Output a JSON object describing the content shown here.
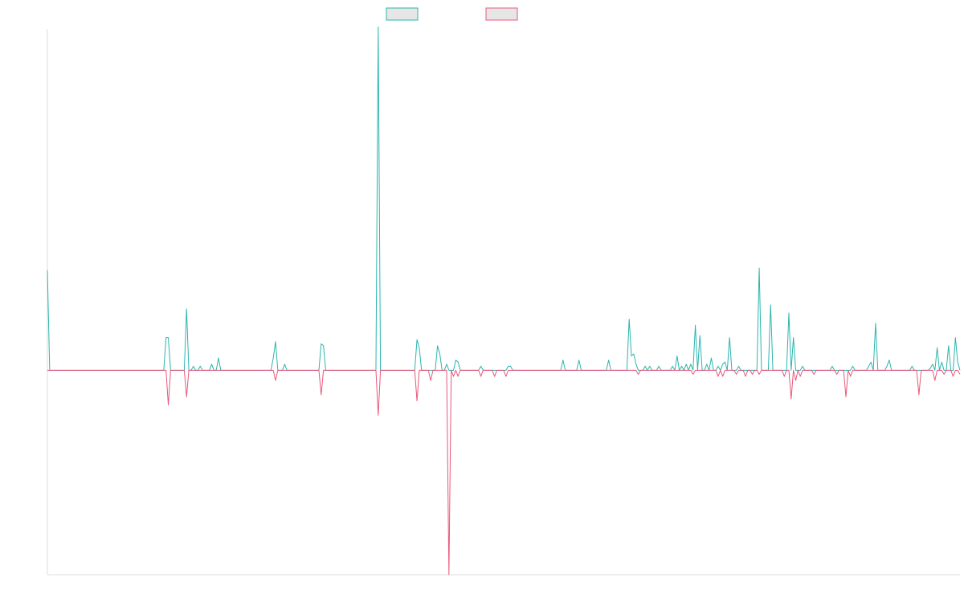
{
  "chart_data": {
    "type": "line",
    "title": "",
    "xlabel": "",
    "ylabel": "",
    "grid": false,
    "legend": "top-center",
    "xlim": [
      0,
      400
    ],
    "ylim": [
      -100,
      167
    ],
    "colors": {
      "series_a": "#2bb5ad",
      "series_b": "#e8587b",
      "legend_fill": "#e6e6e6",
      "axis": "#dddddd"
    },
    "series": [
      {
        "name": "",
        "color": "#2bb5ad",
        "sign": 1,
        "spikes": [
          [
            0,
            49
          ],
          [
            52,
            16
          ],
          [
            53,
            16
          ],
          [
            61,
            30
          ],
          [
            64,
            2
          ],
          [
            67,
            2
          ],
          [
            72,
            3
          ],
          [
            75,
            6
          ],
          [
            99,
            6
          ],
          [
            100,
            14
          ],
          [
            104,
            3
          ],
          [
            120,
            13
          ],
          [
            121,
            12
          ],
          [
            145,
            168
          ],
          [
            162,
            15
          ],
          [
            163,
            11
          ],
          [
            171,
            12
          ],
          [
            172,
            8
          ],
          [
            175,
            3
          ],
          [
            179,
            5
          ],
          [
            180,
            4
          ],
          [
            190,
            2
          ],
          [
            202,
            2
          ],
          [
            203,
            2
          ],
          [
            226,
            5
          ],
          [
            233,
            5
          ],
          [
            246,
            5
          ],
          [
            255,
            25
          ],
          [
            256,
            7
          ],
          [
            257,
            8
          ],
          [
            258,
            3
          ],
          [
            262,
            2
          ],
          [
            264,
            2
          ],
          [
            268,
            2
          ],
          [
            274,
            2
          ],
          [
            276,
            7
          ],
          [
            278,
            2
          ],
          [
            280,
            3
          ],
          [
            282,
            3
          ],
          [
            284,
            22
          ],
          [
            286,
            17
          ],
          [
            289,
            3
          ],
          [
            291,
            6
          ],
          [
            294,
            2
          ],
          [
            296,
            3
          ],
          [
            297,
            4
          ],
          [
            299,
            16
          ],
          [
            303,
            2
          ],
          [
            312,
            50
          ],
          [
            317,
            32
          ],
          [
            325,
            28
          ],
          [
            327,
            16
          ],
          [
            331,
            2
          ],
          [
            344,
            2
          ],
          [
            353,
            2
          ],
          [
            360,
            2
          ],
          [
            361,
            4
          ],
          [
            363,
            23
          ],
          [
            368,
            2
          ],
          [
            369,
            5
          ],
          [
            379,
            2
          ],
          [
            387,
            1
          ],
          [
            388,
            3
          ],
          [
            390,
            11
          ],
          [
            392,
            4
          ],
          [
            395,
            12
          ],
          [
            398,
            16
          ],
          [
            399,
            4
          ]
        ]
      },
      {
        "name": "",
        "color": "#e8587b",
        "sign": -1,
        "spikes": [
          [
            53,
            17
          ],
          [
            61,
            13
          ],
          [
            100,
            5
          ],
          [
            120,
            12
          ],
          [
            145,
            22
          ],
          [
            162,
            15
          ],
          [
            168,
            5
          ],
          [
            176,
            100
          ],
          [
            178,
            3
          ],
          [
            180,
            3
          ],
          [
            190,
            3
          ],
          [
            196,
            3
          ],
          [
            201,
            3
          ],
          [
            259,
            2
          ],
          [
            283,
            2
          ],
          [
            294,
            3
          ],
          [
            296,
            3
          ],
          [
            302,
            2
          ],
          [
            306,
            3
          ],
          [
            309,
            2
          ],
          [
            312,
            2
          ],
          [
            323,
            3
          ],
          [
            326,
            14
          ],
          [
            328,
            5
          ],
          [
            330,
            3
          ],
          [
            336,
            2
          ],
          [
            346,
            2
          ],
          [
            350,
            13
          ],
          [
            352,
            3
          ],
          [
            382,
            12
          ],
          [
            389,
            5
          ],
          [
            393,
            2
          ],
          [
            397,
            3
          ],
          [
            400,
            2
          ]
        ]
      }
    ]
  }
}
